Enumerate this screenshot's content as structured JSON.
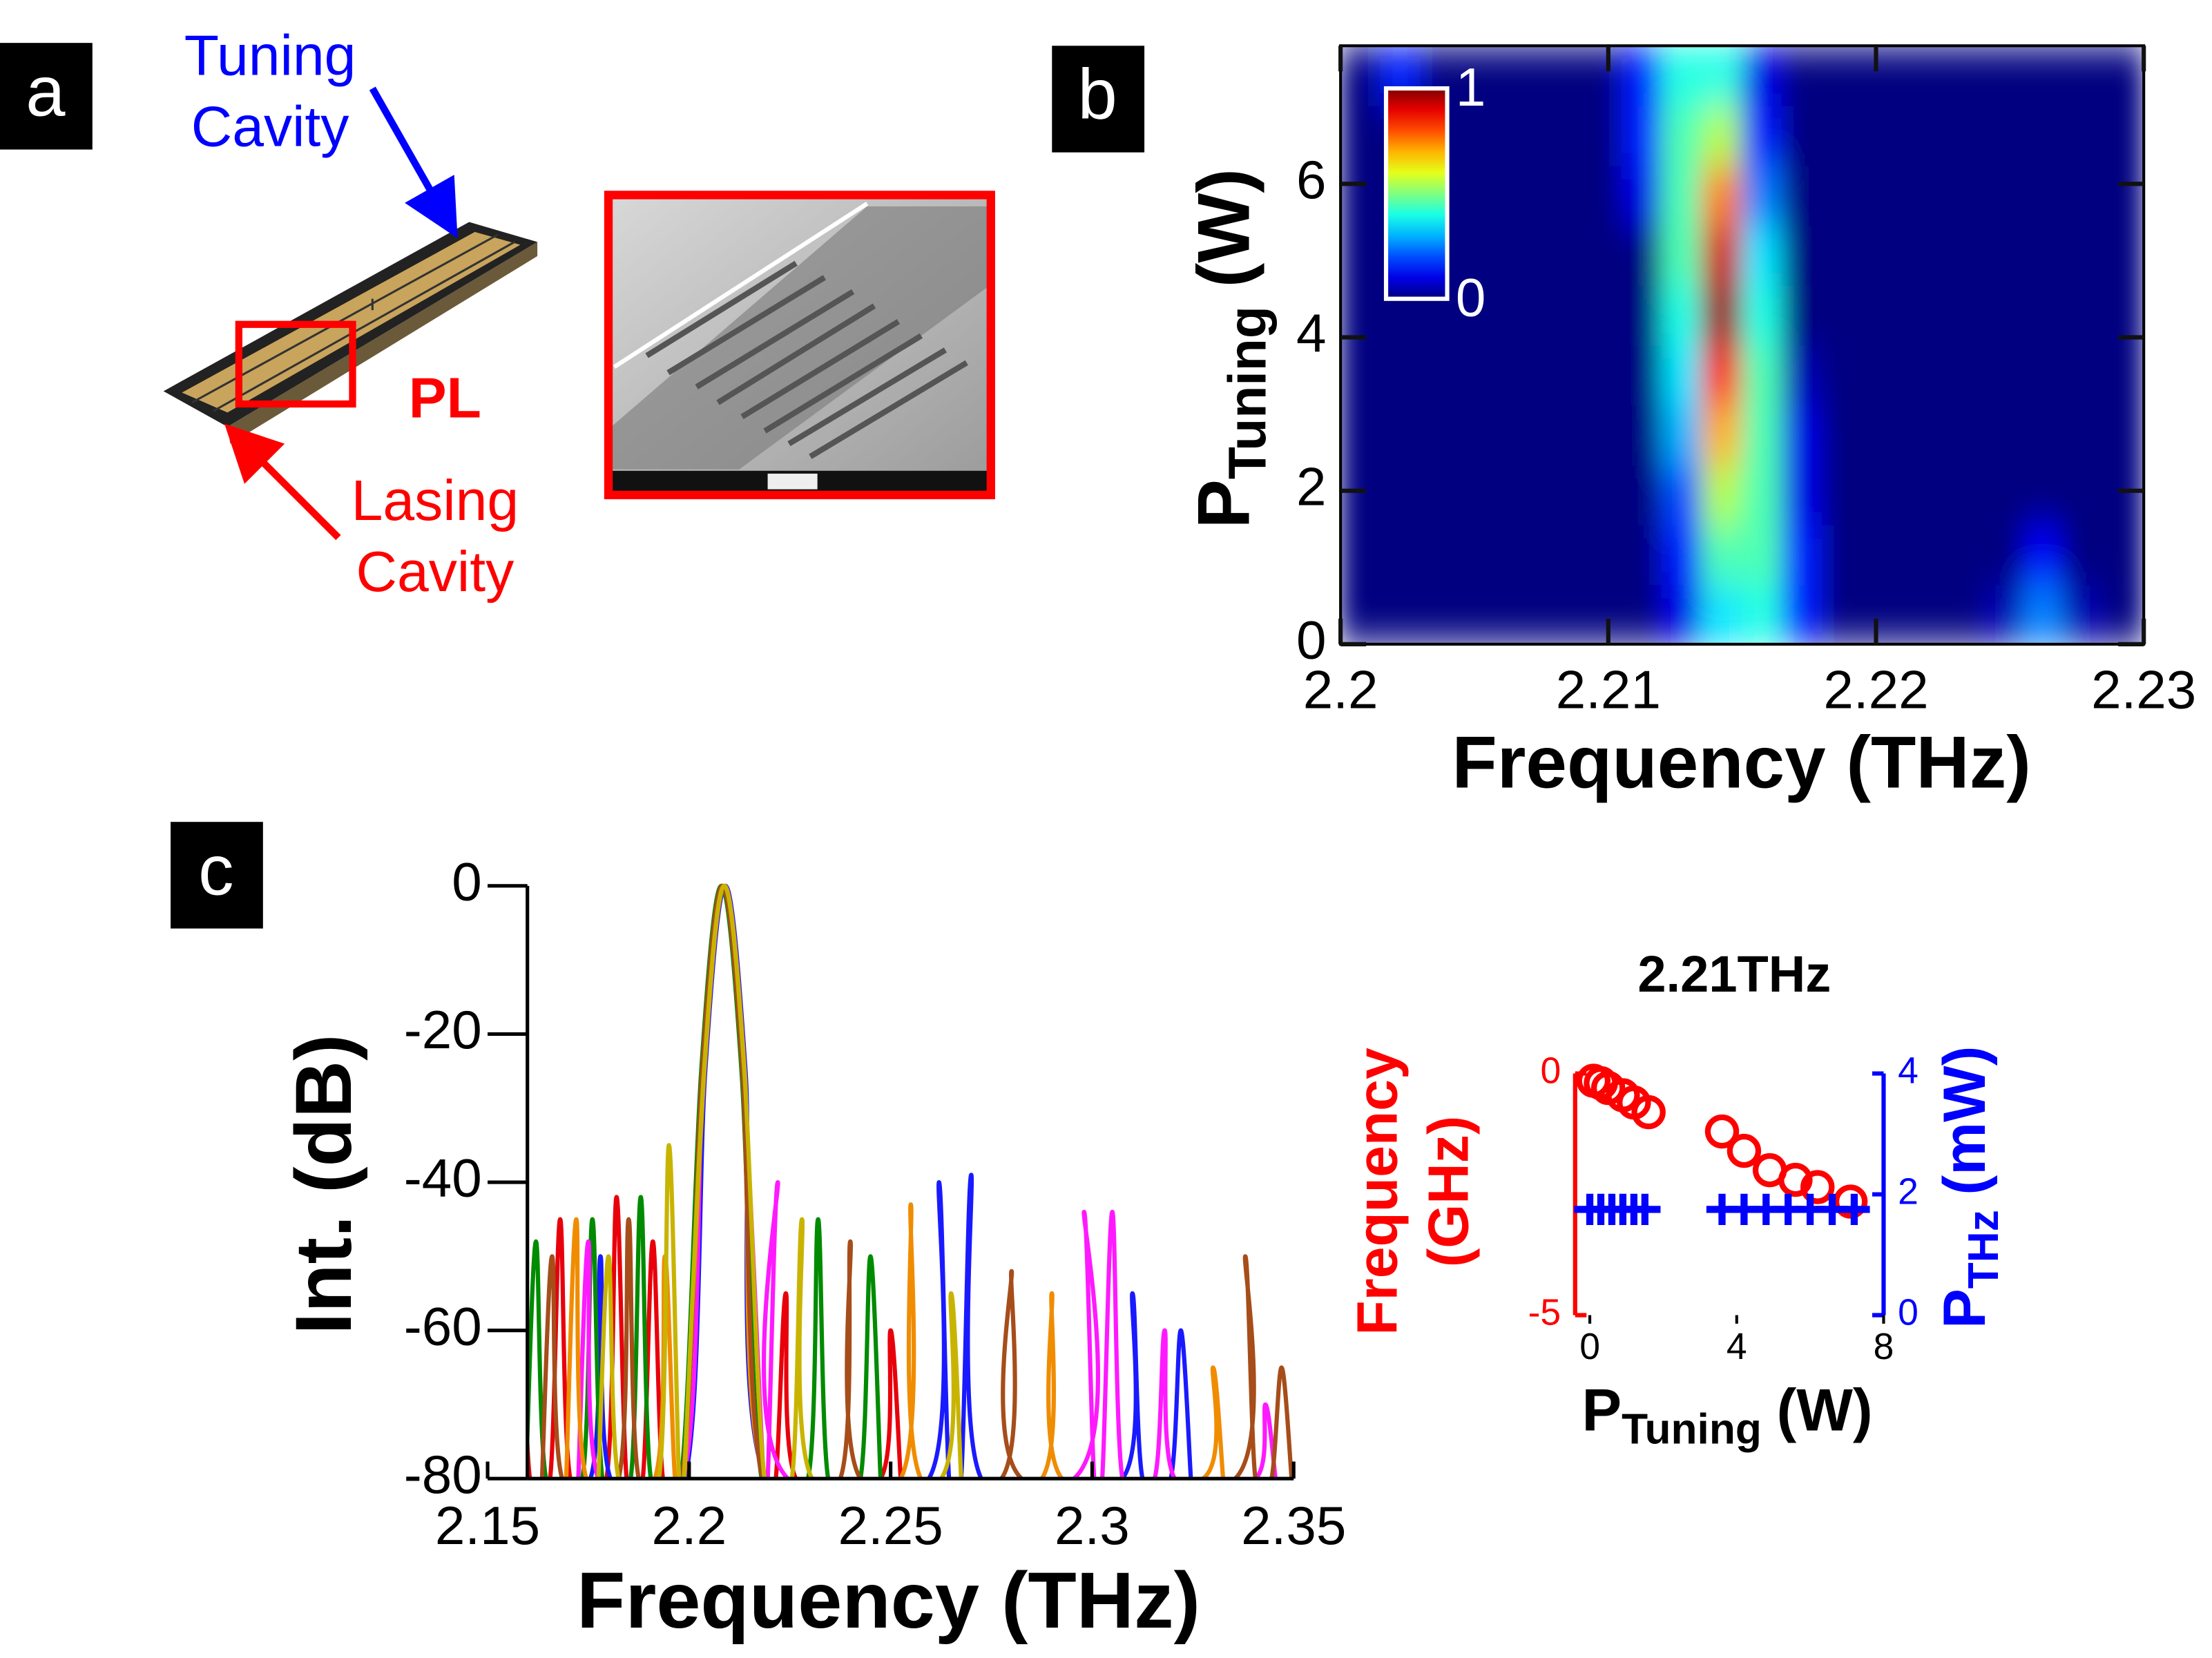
{
  "panel_a": {
    "label": "a",
    "tuning_cavity": [
      "Tuning",
      "Cavity"
    ],
    "pl": "PL",
    "lasing_cavity": [
      "Lasing",
      "Cavity"
    ]
  },
  "chart_data": [
    {
      "type": "heatmap",
      "panel_label": "b",
      "xlabel": "Frequency (THz)",
      "ylabel": {
        "main": "P",
        "sub": "Tuning",
        "rest": "(W)"
      },
      "xlim": [
        2.2,
        2.23
      ],
      "xticks": [
        2.2,
        2.21,
        2.22,
        2.23
      ],
      "ylim": [
        0,
        7.8
      ],
      "yticks": [
        0,
        2,
        4,
        6
      ],
      "colorbar": {
        "lim": [
          0,
          1
        ],
        "ticks": [
          0,
          1
        ]
      },
      "x": [
        2.20075,
        2.20225,
        2.20375,
        2.20525,
        2.20675,
        2.20825,
        2.20975,
        2.21125,
        2.21275,
        2.21425,
        2.21575,
        2.21725,
        2.21875,
        2.22025,
        2.22175,
        2.22325,
        2.22475,
        2.22625,
        2.22775,
        2.22925
      ],
      "y": [
        0.39,
        1.17,
        1.95,
        2.73,
        3.51,
        4.29,
        5.07,
        5.85,
        6.63,
        7.41
      ],
      "z": [
        [
          0,
          0,
          0,
          0,
          0,
          0,
          0,
          0,
          0.1,
          0.35,
          0.4,
          0.15,
          0,
          0,
          0,
          0,
          0.05,
          0.25,
          0.05,
          0
        ],
        [
          0,
          0,
          0,
          0,
          0,
          0,
          0,
          0,
          0.15,
          0.45,
          0.45,
          0.15,
          0,
          0,
          0,
          0,
          0,
          0.12,
          0,
          0
        ],
        [
          0,
          0,
          0,
          0,
          0,
          0,
          0,
          0,
          0.2,
          0.55,
          0.45,
          0.1,
          0,
          0,
          0,
          0,
          0,
          0,
          0,
          0
        ],
        [
          0,
          0,
          0,
          0,
          0,
          0,
          0,
          0,
          0.3,
          0.7,
          0.45,
          0.1,
          0,
          0,
          0,
          0,
          0,
          0,
          0,
          0
        ],
        [
          0,
          0,
          0,
          0,
          0,
          0,
          0,
          0,
          0.35,
          0.85,
          0.45,
          0.05,
          0,
          0,
          0,
          0,
          0,
          0,
          0,
          0
        ],
        [
          0,
          0,
          0,
          0,
          0,
          0,
          0,
          0,
          0.4,
          0.98,
          0.4,
          0,
          0,
          0,
          0,
          0,
          0,
          0,
          0,
          0
        ],
        [
          0,
          0,
          0,
          0,
          0,
          0,
          0,
          0,
          0.45,
          0.92,
          0.35,
          0,
          0,
          0,
          0,
          0,
          0,
          0,
          0,
          0
        ],
        [
          0,
          0,
          0,
          0,
          0,
          0,
          0,
          0.1,
          0.45,
          0.75,
          0.25,
          0,
          0,
          0,
          0,
          0,
          0,
          0,
          0,
          0
        ],
        [
          0,
          0,
          0,
          0,
          0,
          0,
          0,
          0.15,
          0.45,
          0.55,
          0.15,
          0,
          0,
          0,
          0,
          0,
          0,
          0,
          0,
          0
        ],
        [
          0,
          0.15,
          0,
          0,
          0,
          0,
          0,
          0.15,
          0.4,
          0.4,
          0.1,
          0,
          0,
          0,
          0,
          0,
          0,
          0,
          0,
          0
        ]
      ]
    },
    {
      "type": "line",
      "panel_label": "c",
      "xlabel": "Frequency (THz)",
      "ylabel": "Int. (dB)",
      "xlim": [
        2.15,
        2.35
      ],
      "xticks": [
        2.15,
        2.2,
        2.25,
        2.3,
        2.35
      ],
      "ylim": [
        -80,
        0
      ],
      "yticks": [
        -80,
        -60,
        -40,
        -20,
        0
      ],
      "series": [
        {
          "color": "#e8000b",
          "x": [
            2.1555,
            2.158,
            2.1605,
            2.1655,
            2.168,
            2.1705,
            2.1795,
            2.182,
            2.1845,
            2.1885,
            2.191,
            2.1935,
            2.1985,
            2.2035,
            2.2085,
            2.2135,
            2.2185,
            2.2215,
            2.224,
            2.2265,
            2.2475,
            2.25,
            2.2525
          ],
          "values": [
            -80,
            -52,
            -80,
            -80,
            -45,
            -80,
            -80,
            -42,
            -80,
            -80,
            -48,
            -80,
            -80,
            -25,
            0,
            -25,
            -80,
            -80,
            -55,
            -80,
            -80,
            -60,
            -80
          ]
        },
        {
          "color": "#1a1aff",
          "x": [
            2.1535,
            2.156,
            2.1585,
            2.1755,
            2.178,
            2.1805,
            2.199,
            2.204,
            2.209,
            2.214,
            2.219,
            2.2595,
            2.262,
            2.2645,
            2.2675,
            2.27,
            2.2725,
            2.3075,
            2.31,
            2.3125,
            2.3195,
            2.322,
            2.3245
          ],
          "values": [
            -80,
            -50,
            -80,
            -80,
            -50,
            -80,
            -80,
            -25,
            0,
            -25,
            -80,
            -80,
            -40,
            -80,
            -80,
            -39,
            -80,
            -80,
            -55,
            -80,
            -80,
            -60,
            -80
          ]
        },
        {
          "color": "#008b00",
          "x": [
            2.1595,
            2.162,
            2.1645,
            2.1735,
            2.176,
            2.1785,
            2.1855,
            2.188,
            2.1905,
            2.198,
            2.203,
            2.208,
            2.213,
            2.218,
            2.2295,
            2.232,
            2.2345,
            2.2425,
            2.245,
            2.2475
          ],
          "values": [
            -80,
            -48,
            -80,
            -80,
            -45,
            -80,
            -80,
            -42,
            -80,
            -80,
            -25,
            0,
            -25,
            -80,
            -80,
            -45,
            -80,
            -80,
            -50,
            -80
          ]
        },
        {
          "color": "#ff19ff",
          "x": [
            2.1725,
            2.175,
            2.1775,
            2.1985,
            2.2035,
            2.2085,
            2.2135,
            2.2185,
            2.2195,
            2.222,
            2.2245,
            2.2955,
            2.298,
            2.3005,
            2.3025,
            2.305,
            2.3075,
            2.3155,
            2.318,
            2.3205,
            2.3405,
            2.343,
            2.3455
          ],
          "values": [
            -80,
            -48,
            -80,
            -80,
            -25,
            0,
            -25,
            -80,
            -80,
            -40,
            -80,
            -80,
            -44,
            -80,
            -80,
            -44,
            -80,
            -80,
            -60,
            -80,
            -80,
            -70,
            -80
          ]
        },
        {
          "color": "#f08c00",
          "x": [
            2.1695,
            2.172,
            2.1745,
            2.1915,
            2.194,
            2.1965,
            2.1988,
            2.2038,
            2.2088,
            2.2138,
            2.2188,
            2.2525,
            2.255,
            2.2575,
            2.2875,
            2.29,
            2.2925,
            2.3275,
            2.33,
            2.3325
          ],
          "values": [
            -80,
            -45,
            -80,
            -80,
            -50,
            -80,
            -80,
            -25,
            0,
            -25,
            -80,
            -80,
            -43,
            -80,
            -80,
            -55,
            -80,
            -80,
            -65,
            -80
          ]
        },
        {
          "color": "#a64d1a",
          "x": [
            2.1635,
            2.166,
            2.1685,
            2.1825,
            2.185,
            2.1875,
            2.1982,
            2.2032,
            2.2082,
            2.2132,
            2.2182,
            2.2375,
            2.24,
            2.2425,
            2.2775,
            2.28,
            2.2825,
            2.3355,
            2.338,
            2.3405,
            2.3445,
            2.347,
            2.3495
          ],
          "values": [
            -80,
            -50,
            -80,
            -80,
            -45,
            -80,
            -80,
            -25,
            0,
            -25,
            -80,
            -80,
            -48,
            -80,
            -80,
            -52,
            -80,
            -80,
            -50,
            -80,
            -80,
            -65,
            -80
          ]
        },
        {
          "color": "#c8b400",
          "x": [
            2.1775,
            2.18,
            2.1825,
            2.1925,
            2.195,
            2.1975,
            2.1987,
            2.2037,
            2.2087,
            2.2137,
            2.2187,
            2.2255,
            2.228,
            2.2305,
            2.2625,
            2.265,
            2.2675
          ],
          "values": [
            -80,
            -50,
            -80,
            -80,
            -35,
            -80,
            -80,
            -25,
            0,
            -25,
            -80,
            -80,
            -45,
            -80,
            -80,
            -55,
            -80
          ]
        }
      ]
    },
    {
      "type": "scatter",
      "title": "2.21THz",
      "xlabel": {
        "main": "P",
        "sub": "Tuning",
        "rest": "(W)"
      },
      "ylabel": [
        "Frequency",
        "(GHz)"
      ],
      "y2label": {
        "main": "P",
        "sub": "THz",
        "rest": "(mW)"
      },
      "xlim": [
        -0.4,
        8
      ],
      "xticks": [
        0,
        4,
        8
      ],
      "ylim": [
        -5,
        0
      ],
      "yticks": [
        -5,
        0
      ],
      "y2lim": [
        0,
        4
      ],
      "y2ticks": [
        0,
        2,
        4
      ],
      "series": [
        {
          "marker": "circle",
          "color": "#ff0000",
          "x": [
            0.1,
            0.3,
            0.5,
            0.9,
            1.2,
            1.6,
            3.6,
            4.2,
            4.9,
            5.6,
            6.2,
            7.1
          ],
          "values": [
            -0.15,
            -0.2,
            -0.3,
            -0.45,
            -0.6,
            -0.8,
            -1.2,
            -1.6,
            -2.0,
            -2.2,
            -2.35,
            -2.65
          ]
        },
        {
          "marker": "plus",
          "color": "#0000ff",
          "axis": "y2",
          "x": [
            0,
            0.3,
            0.6,
            0.9,
            1.2,
            1.5,
            3.6,
            4.2,
            4.8,
            5.4,
            6,
            6.6,
            7.2
          ],
          "values": [
            1.75,
            1.75,
            1.75,
            1.75,
            1.75,
            1.75,
            1.75,
            1.75,
            1.75,
            1.75,
            1.75,
            1.75,
            1.75
          ]
        }
      ]
    }
  ]
}
